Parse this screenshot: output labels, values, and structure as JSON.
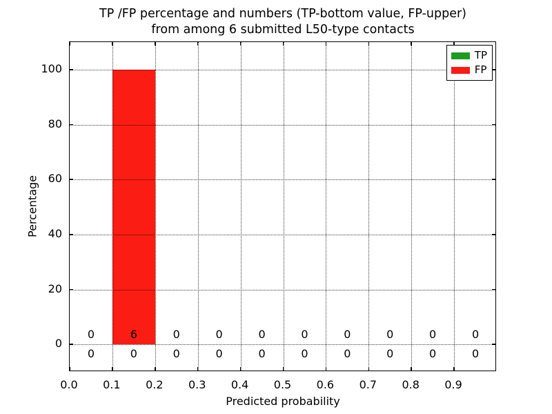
{
  "chart_data": {
    "type": "bar",
    "title_line1": "TP /FP percentage and numbers (TP-bottom value, FP-upper)",
    "title_line2": "from among 6 submitted L50-type contacts",
    "xlabel": "Predicted probability",
    "ylabel": "Percentage",
    "xlim": [
      0.0,
      1.0
    ],
    "ylim": [
      -10,
      110
    ],
    "x_tick_values": [
      0.0,
      0.1,
      0.2,
      0.3,
      0.4,
      0.5,
      0.6,
      0.7,
      0.8,
      0.9
    ],
    "x_tick_labels": [
      "0.0",
      "0.1",
      "0.2",
      "0.3",
      "0.4",
      "0.5",
      "0.6",
      "0.7",
      "0.8",
      "0.9"
    ],
    "y_tick_values": [
      0,
      20,
      40,
      60,
      80,
      100
    ],
    "y_tick_labels": [
      "0",
      "20",
      "40",
      "60",
      "80",
      "100"
    ],
    "grid": true,
    "bin_edges": [
      0.0,
      0.1,
      0.2,
      0.3,
      0.4,
      0.5,
      0.6,
      0.7,
      0.8,
      0.9,
      1.0
    ],
    "series": [
      {
        "name": "TP",
        "color": "#1e9b22",
        "percent": [
          0,
          0,
          0,
          0,
          0,
          0,
          0,
          0,
          0,
          0
        ],
        "counts": [
          0,
          0,
          0,
          0,
          0,
          0,
          0,
          0,
          0,
          0
        ],
        "count_row": "bottom"
      },
      {
        "name": "FP",
        "color": "#fb1c13",
        "percent": [
          0,
          100,
          0,
          0,
          0,
          0,
          0,
          0,
          0,
          0
        ],
        "counts": [
          0,
          6,
          0,
          0,
          0,
          0,
          0,
          0,
          0,
          0
        ],
        "count_row": "upper"
      }
    ],
    "legend_position": "upper right"
  }
}
